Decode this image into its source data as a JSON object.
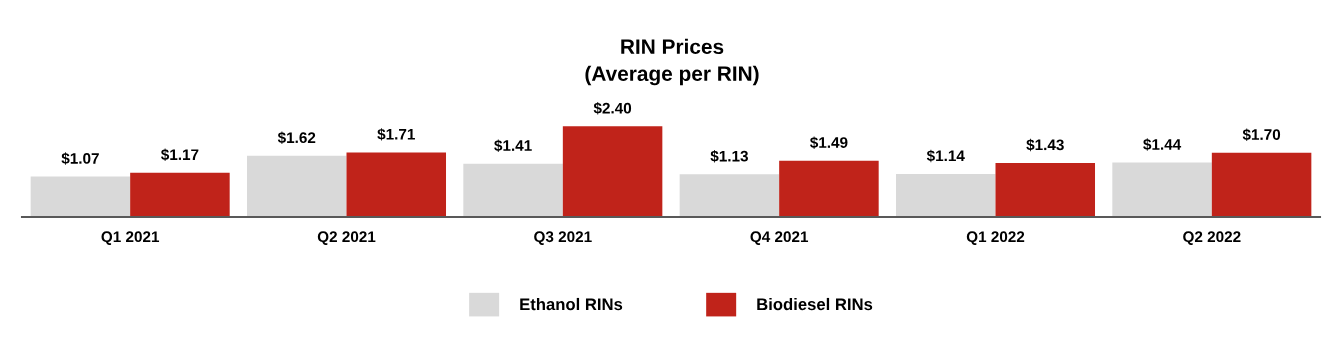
{
  "chart_data": {
    "type": "bar",
    "title": "RIN Prices\n(Average per RIN)",
    "categories": [
      "Q1 2021",
      "Q2 2021",
      "Q3 2021",
      "Q4 2021",
      "Q1 2022",
      "Q2 2022"
    ],
    "series": [
      {
        "name": "Ethanol RINs",
        "color": "#d9d9d9",
        "values": [
          1.07,
          1.62,
          1.41,
          1.13,
          1.14,
          1.44
        ],
        "value_labels": [
          "$1.07",
          "$1.62",
          "$1.41",
          "$1.13",
          "$1.14",
          "$1.44"
        ]
      },
      {
        "name": "Biodiesel RINs",
        "color": "#c0231a",
        "values": [
          1.17,
          1.71,
          2.4,
          1.49,
          1.43,
          1.7
        ],
        "value_labels": [
          "$1.17",
          "$1.71",
          "$2.40",
          "$1.49",
          "$1.43",
          "$1.70"
        ]
      }
    ],
    "grid": false,
    "legend": "bottom"
  }
}
